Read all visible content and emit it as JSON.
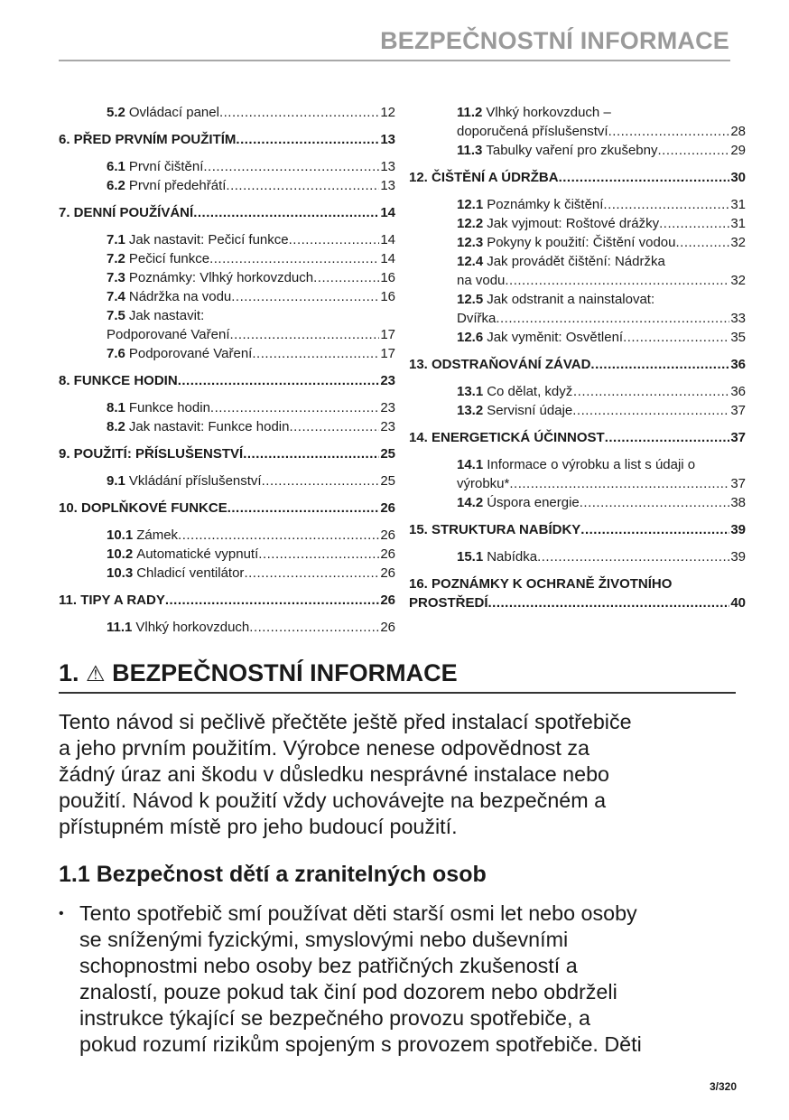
{
  "header": {
    "running_title": "BEZPEČNOSTNÍ INFORMACE"
  },
  "toc": {
    "left": [
      {
        "type": "sub",
        "num": "5.2",
        "title": "Ovládací panel",
        "page": "12"
      },
      {
        "type": "major",
        "title": "6. PŘED PRVNÍM POUŽITÍM",
        "page": "13"
      },
      {
        "type": "sub",
        "num": "6.1",
        "title": "První čištění",
        "page": "13"
      },
      {
        "type": "sub",
        "num": "6.2",
        "title": "První předehřátí",
        "page": "13"
      },
      {
        "type": "major",
        "title": "7. DENNÍ POUŽÍVÁNÍ",
        "page": "14"
      },
      {
        "type": "sub",
        "num": "7.1",
        "title": "Jak nastavit: Pečicí funkce",
        "page": "14"
      },
      {
        "type": "sub",
        "num": "7.2",
        "title": "Pečicí funkce",
        "page": "14"
      },
      {
        "type": "sub",
        "num": "7.3",
        "title": "Poznámky: Vlhký horkovzduch",
        "page": "16"
      },
      {
        "type": "sub",
        "num": "7.4",
        "title": "Nádržka na vodu",
        "page": "16"
      },
      {
        "type": "sub",
        "num": "7.5",
        "lead": "Jak nastavit:",
        "title": "Podporované Vaření",
        "page": "17"
      },
      {
        "type": "sub",
        "num": "7.6",
        "title": "Podporované Vaření",
        "page": "17"
      },
      {
        "type": "major",
        "title": "8. FUNKCE HODIN",
        "page": "23"
      },
      {
        "type": "sub",
        "num": "8.1",
        "title": "Funkce hodin",
        "page": "23"
      },
      {
        "type": "sub",
        "num": "8.2",
        "title": "Jak nastavit: Funkce hodin",
        "page": "23"
      },
      {
        "type": "major",
        "title": "9. POUŽITÍ: PŘÍSLUŠENSTVÍ",
        "page": "25"
      },
      {
        "type": "sub",
        "num": "9.1",
        "title": "Vkládání příslušenství",
        "page": "25"
      },
      {
        "type": "major",
        "title": "10. DOPLŇKOVÉ FUNKCE",
        "page": "26"
      },
      {
        "type": "sub",
        "num": "10.1",
        "title": "Zámek",
        "page": "26"
      },
      {
        "type": "sub",
        "num": "10.2",
        "title": "Automatické vypnutí",
        "page": "26"
      },
      {
        "type": "sub",
        "num": "10.3",
        "title": "Chladicí ventilátor",
        "page": "26"
      },
      {
        "type": "major",
        "title": "11. TIPY A RADY",
        "page": "26"
      },
      {
        "type": "sub",
        "num": "11.1",
        "title": "Vlhký horkovzduch",
        "page": "26"
      }
    ],
    "right": [
      {
        "type": "sub",
        "num": "11.2",
        "lead": "Vlhký horkovzduch –",
        "title": "doporučená příslušenství",
        "page": "28"
      },
      {
        "type": "sub",
        "num": "11.3",
        "title": "Tabulky vaření pro zkušebny",
        "page": "29"
      },
      {
        "type": "major",
        "title": "12. ČIŠTĚNÍ A ÚDRŽBA",
        "page": "30"
      },
      {
        "type": "sub",
        "num": "12.1",
        "title": "Poznámky k čištění",
        "page": "31"
      },
      {
        "type": "sub",
        "num": "12.2",
        "title": "Jak vyjmout: Roštové drážky",
        "page": "31"
      },
      {
        "type": "sub",
        "num": "12.3",
        "title": "Pokyny k použití: Čištění vodou",
        "page": "32"
      },
      {
        "type": "sub",
        "num": "12.4",
        "lead": "Jak provádět čištění: Nádržka",
        "title": "na vodu",
        "page": "32"
      },
      {
        "type": "sub",
        "num": "12.5",
        "lead": "Jak odstranit a nainstalovat:",
        "title": "Dvířka",
        "page": "33"
      },
      {
        "type": "sub",
        "num": "12.6",
        "title": "Jak vyměnit: Osvětlení",
        "page": "35"
      },
      {
        "type": "major",
        "title": "13. ODSTRAŇOVÁNÍ ZÁVAD",
        "page": "36"
      },
      {
        "type": "sub",
        "num": "13.1",
        "title": "Co dělat, když…",
        "page": "36"
      },
      {
        "type": "sub",
        "num": "13.2",
        "title": "Servisní údaje",
        "page": "37"
      },
      {
        "type": "major",
        "title": "14. ENERGETICKÁ ÚČINNOST",
        "page": "37"
      },
      {
        "type": "sub",
        "num": "14.1",
        "lead": "Informace o výrobku a list s údaji o",
        "title": "výrobku*",
        "page": "37"
      },
      {
        "type": "sub",
        "num": "14.2",
        "title": "Úspora energie",
        "page": "38"
      },
      {
        "type": "major",
        "title": "15. STRUKTURA NABÍDKY",
        "page": "39"
      },
      {
        "type": "sub",
        "num": "15.1",
        "title": "Nabídka",
        "page": "39"
      },
      {
        "type": "major",
        "lead": "16. POZNÁMKY K OCHRANĚ ŽIVOTNÍHO",
        "title": "PROSTŘEDÍ",
        "page": "40"
      }
    ]
  },
  "section": {
    "number": "1.",
    "warning_icon": "⚠",
    "title": "BEZPEČNOSTNÍ INFORMACE",
    "intro_lines": [
      "Tento návod si pečlivě přečtěte ještě před instalací spotřebiče",
      "a jeho prvním použitím. Výrobce nenese odpovědnost za",
      "žádný úraz ani škodu v důsledku nesprávné instalace nebo",
      "použití. Návod k použití vždy uchovávejte na bezpečném a",
      "přístupném místě pro jeho budoucí použití."
    ],
    "subsection_title": "1.1 Bezpečnost dětí a zranitelných osob",
    "bullet_marker": "•",
    "bullet_lines": [
      "Tento spotřebič smí používat děti starší osmi let nebo osoby",
      "se sníženými fyzickými, smyslovými nebo duševními",
      "schopnostmi nebo osoby bez patřičných zkušeností a",
      "znalostí, pouze pokud tak činí pod dozorem nebo obdrželi",
      "instrukce týkající se bezpečného provozu spotřebiče, a",
      "pokud rozumí rizikům spojeným s provozem spotřebiče. Děti"
    ]
  },
  "footer": {
    "page_number": "3/320"
  }
}
